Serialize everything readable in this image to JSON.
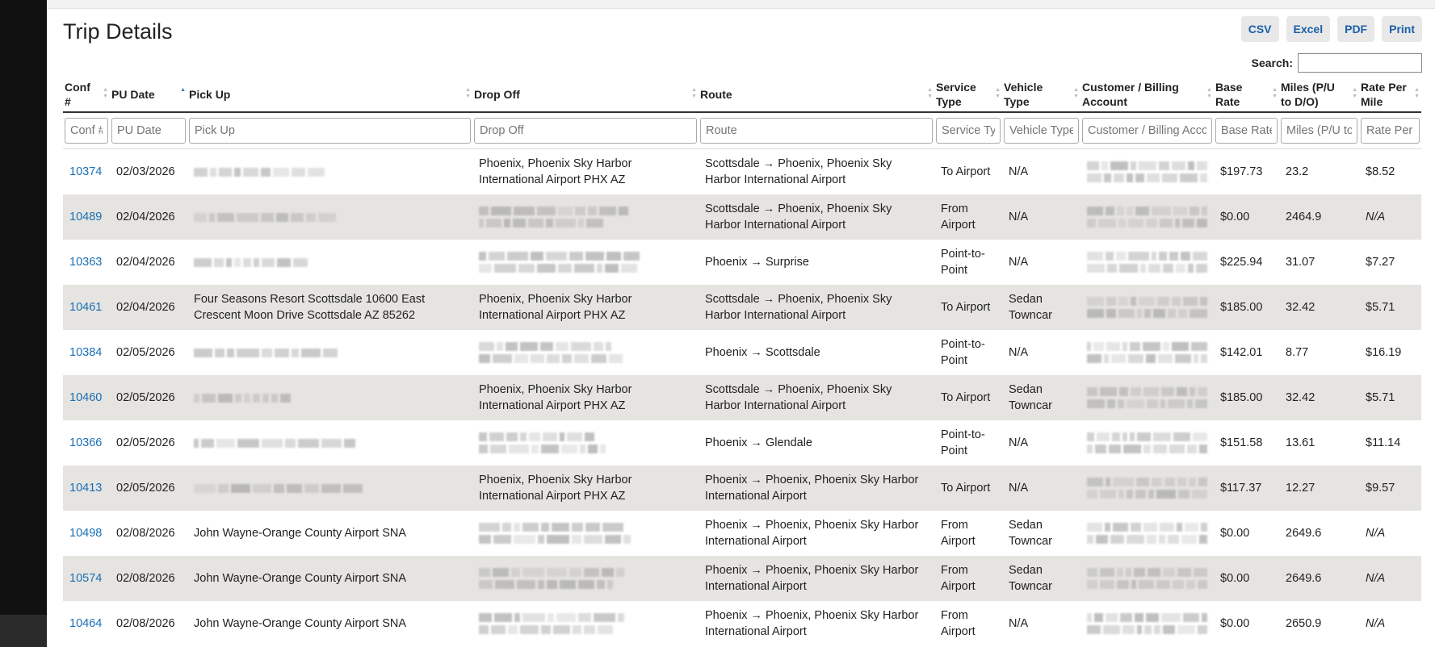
{
  "header": {
    "title": "Trip Details",
    "buttons": [
      "CSV",
      "Excel",
      "PDF",
      "Print"
    ],
    "search_label": "Search:"
  },
  "table": {
    "columns": [
      "Conf #",
      "PU Date",
      "Pick Up",
      "Drop Off",
      "Route",
      "Service Type",
      "Vehicle Type",
      "Customer / Billing Account",
      "Base Rate",
      "Miles (P/U to D/O)",
      "Rate Per Mile"
    ],
    "rows": [
      {
        "conf": "10374",
        "date": "02/03/2026",
        "pickup": null,
        "dropoff": "Phoenix, Phoenix Sky Harbor International Airport PHX AZ",
        "route": "Scottsdale → Phoenix, Phoenix Sky Harbor International Airport",
        "service": "To Airport",
        "vehicle": "N/A",
        "base": "$197.73",
        "miles": "23.2",
        "rate": "$8.52"
      },
      {
        "conf": "10489",
        "date": "02/04/2026",
        "pickup": null,
        "dropoff": null,
        "route": "Scottsdale → Phoenix, Phoenix Sky Harbor International Airport",
        "service": "From Airport",
        "vehicle": "N/A",
        "base": "$0.00",
        "miles": "2464.9",
        "rate": "N/A"
      },
      {
        "conf": "10363",
        "date": "02/04/2026",
        "pickup": null,
        "dropoff": null,
        "route": "Phoenix → Surprise",
        "service": "Point-to-Point",
        "vehicle": "N/A",
        "base": "$225.94",
        "miles": "31.07",
        "rate": "$7.27"
      },
      {
        "conf": "10461",
        "date": "02/04/2026",
        "pickup": "Four Seasons Resort Scottsdale 10600 East Crescent Moon Drive Scottsdale AZ 85262",
        "dropoff": "Phoenix, Phoenix Sky Harbor International Airport PHX AZ",
        "route": "Scottsdale → Phoenix, Phoenix Sky Harbor International Airport",
        "service": "To Airport",
        "vehicle": "Sedan Towncar",
        "base": "$185.00",
        "miles": "32.42",
        "rate": "$5.71"
      },
      {
        "conf": "10384",
        "date": "02/05/2026",
        "pickup": null,
        "dropoff": null,
        "route": "Phoenix → Scottsdale",
        "service": "Point-to-Point",
        "vehicle": "N/A",
        "base": "$142.01",
        "miles": "8.77",
        "rate": "$16.19"
      },
      {
        "conf": "10460",
        "date": "02/05/2026",
        "pickup": null,
        "dropoff": "Phoenix, Phoenix Sky Harbor International Airport PHX AZ",
        "route": "Scottsdale → Phoenix, Phoenix Sky Harbor International Airport",
        "service": "To Airport",
        "vehicle": "Sedan Towncar",
        "base": "$185.00",
        "miles": "32.42",
        "rate": "$5.71"
      },
      {
        "conf": "10366",
        "date": "02/05/2026",
        "pickup": null,
        "dropoff": null,
        "route": "Phoenix → Glendale",
        "service": "Point-to-Point",
        "vehicle": "N/A",
        "base": "$151.58",
        "miles": "13.61",
        "rate": "$11.14"
      },
      {
        "conf": "10413",
        "date": "02/05/2026",
        "pickup": null,
        "dropoff": "Phoenix, Phoenix Sky Harbor International Airport PHX AZ",
        "route": "Phoenix → Phoenix, Phoenix Sky Harbor International Airport",
        "service": "To Airport",
        "vehicle": "N/A",
        "base": "$117.37",
        "miles": "12.27",
        "rate": "$9.57"
      },
      {
        "conf": "10498",
        "date": "02/08/2026",
        "pickup": "John Wayne-Orange County Airport SNA",
        "dropoff": null,
        "route": "Phoenix → Phoenix, Phoenix Sky Harbor International Airport",
        "service": "From Airport",
        "vehicle": "Sedan Towncar",
        "base": "$0.00",
        "miles": "2649.6",
        "rate": "N/A"
      },
      {
        "conf": "10574",
        "date": "02/08/2026",
        "pickup": "John Wayne-Orange County Airport SNA",
        "dropoff": null,
        "route": "Phoenix → Phoenix, Phoenix Sky Harbor International Airport",
        "service": "From Airport",
        "vehicle": "Sedan Towncar",
        "base": "$0.00",
        "miles": "2649.6",
        "rate": "N/A"
      },
      {
        "conf": "10464",
        "date": "02/08/2026",
        "pickup": "John Wayne-Orange County Airport SNA",
        "dropoff": null,
        "route": "Phoenix → Phoenix, Phoenix Sky Harbor International Airport",
        "service": "From Airport",
        "vehicle": "N/A",
        "base": "$0.00",
        "miles": "2650.9",
        "rate": "N/A"
      }
    ]
  }
}
